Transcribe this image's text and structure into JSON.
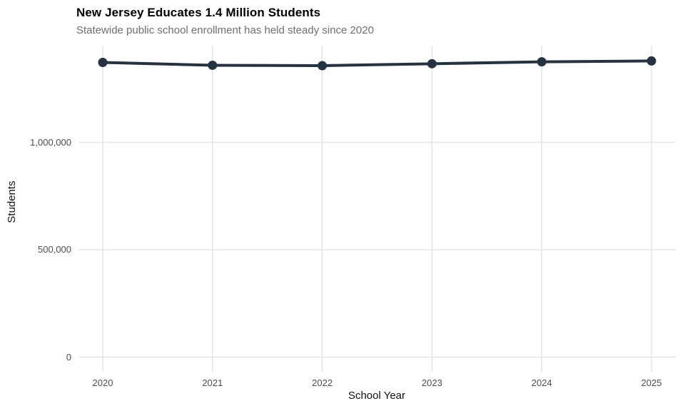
{
  "chart_data": {
    "type": "line",
    "title": "New Jersey Educates 1.4 Million Students",
    "subtitle": "Statewide public school enrollment has held steady since 2020",
    "xlabel": "School Year",
    "ylabel": "Students",
    "x": [
      2020,
      2021,
      2022,
      2023,
      2024,
      2025
    ],
    "x_tick_labels": [
      "2020",
      "2021",
      "2022",
      "2023",
      "2024",
      "2025"
    ],
    "series": [
      {
        "name": "Statewide public school enrollment",
        "values": [
          1372000,
          1359000,
          1357000,
          1366000,
          1375000,
          1379000
        ]
      }
    ],
    "y_ticks": [
      {
        "value": 0,
        "label": "0"
      },
      {
        "value": 500000,
        "label": "500,000"
      },
      {
        "value": 1000000,
        "label": "1,000,000"
      }
    ],
    "ylim": [
      0,
      1450000
    ],
    "grid": "major-only",
    "legend": "none",
    "colors": {
      "line": "#253240",
      "point": "#253240",
      "grid": "#e5e5e5",
      "title_text": "#000000",
      "subtitle_text": "#6f6f6f",
      "tick_text": "#4d4d4d",
      "background": "#ffffff"
    }
  }
}
